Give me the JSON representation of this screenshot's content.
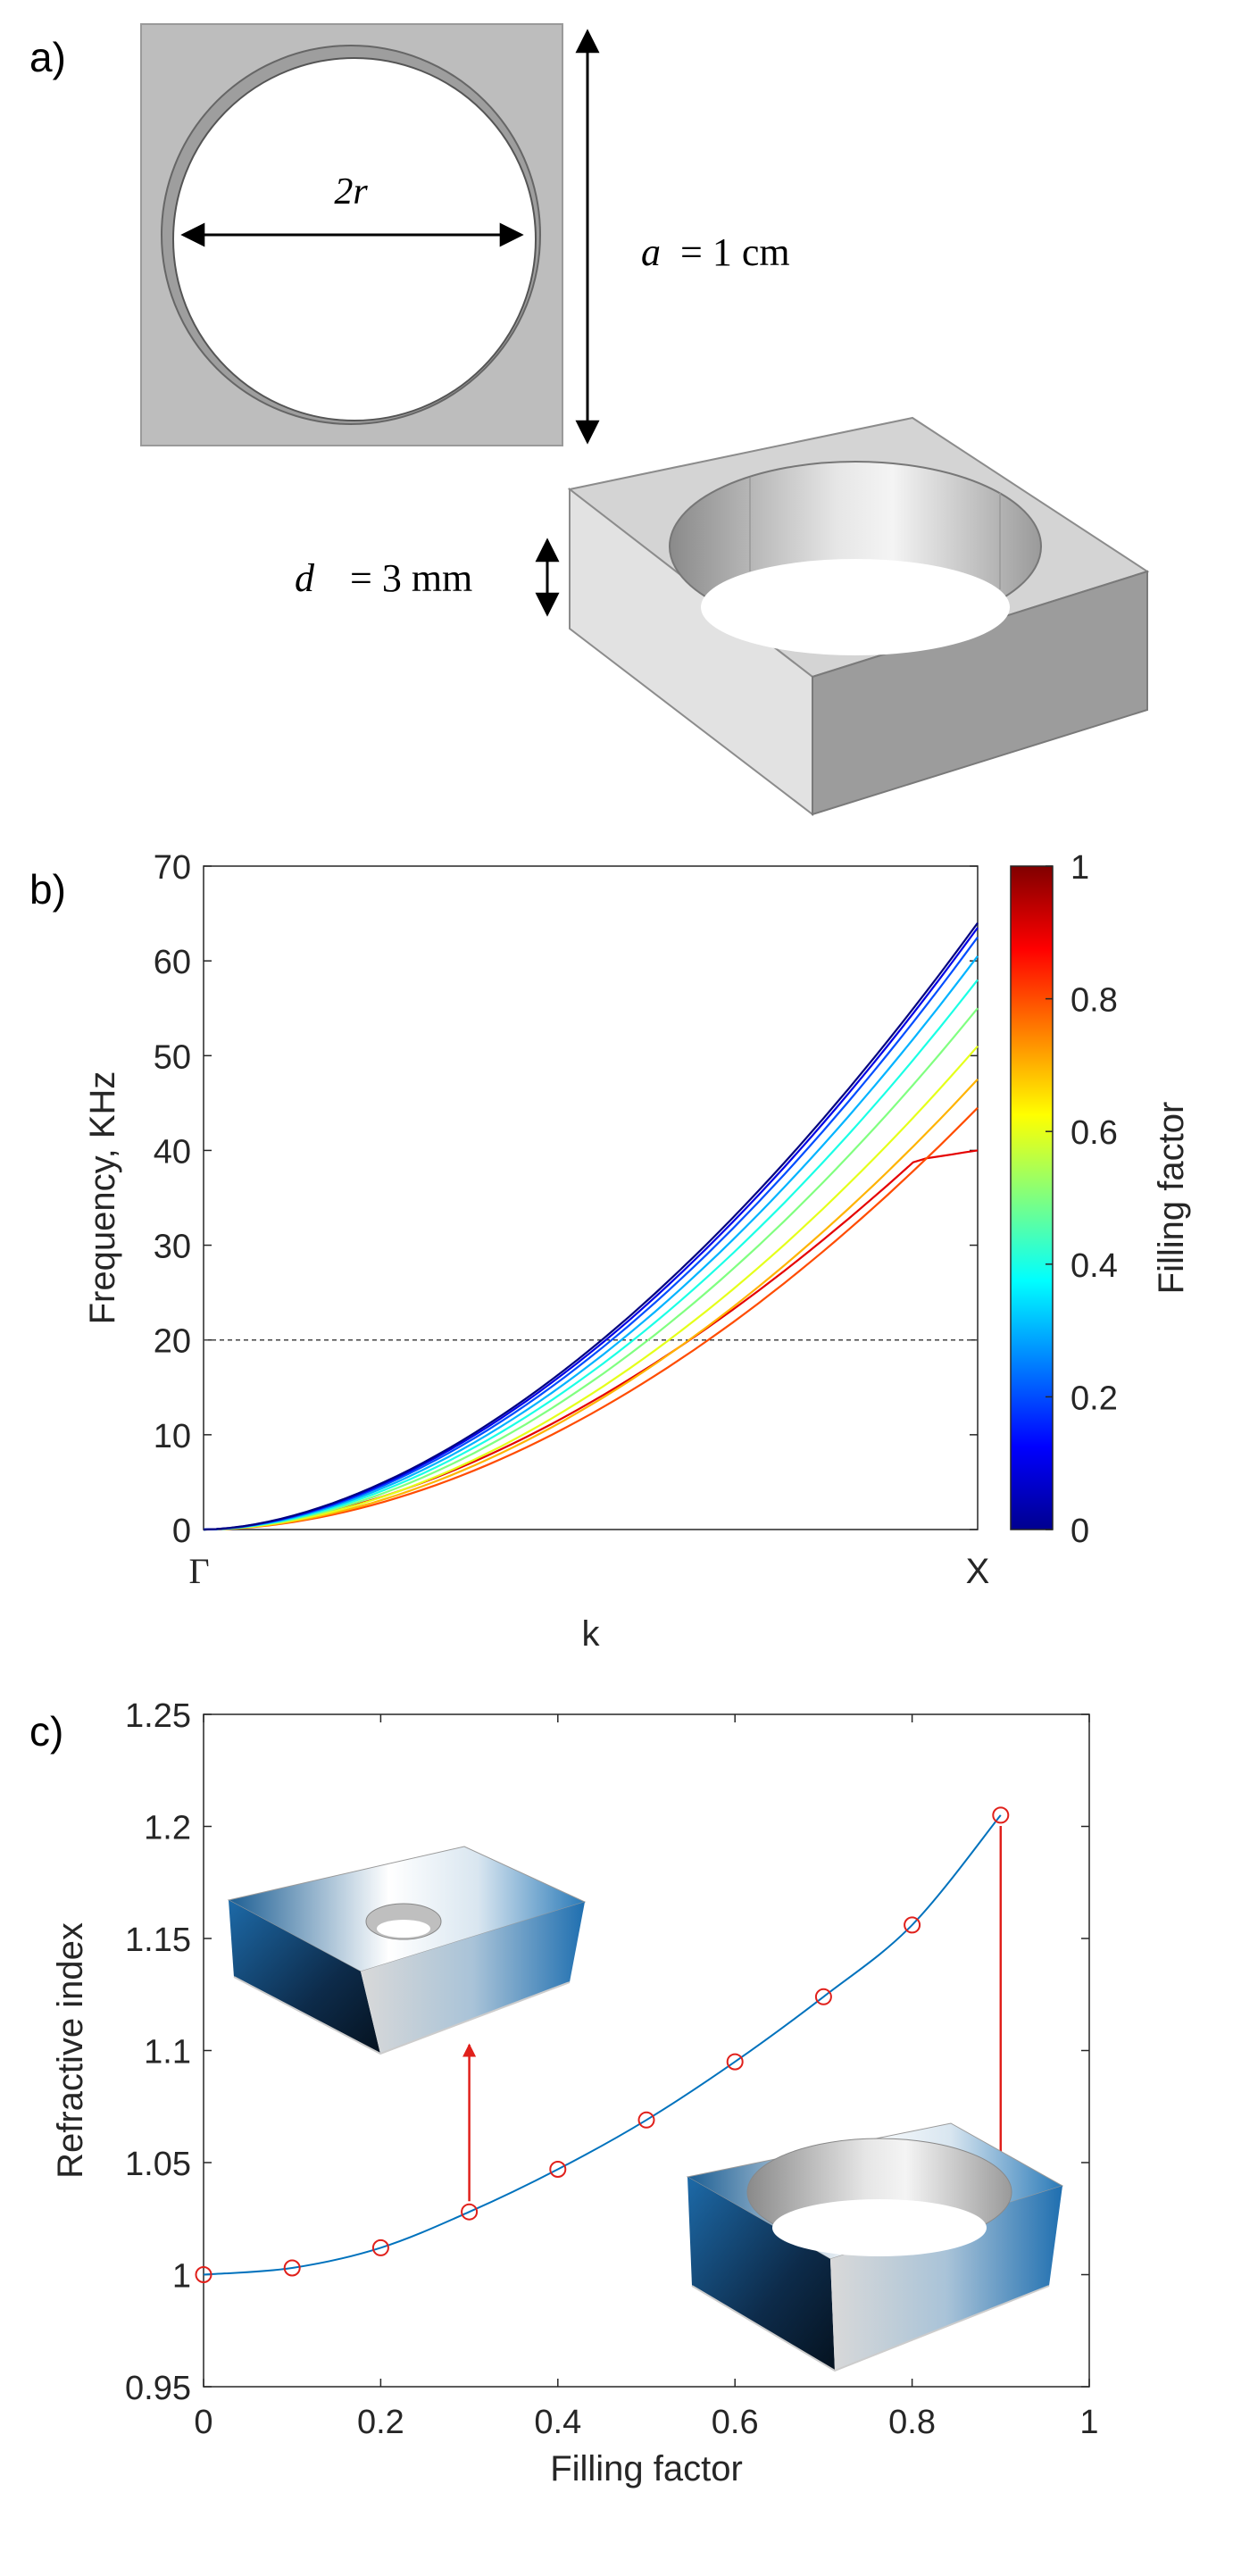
{
  "panels": {
    "a_label": "a)",
    "b_label": "b)",
    "c_label": "c)"
  },
  "geometry": {
    "diameter_label": "2r",
    "period_symbol": "a",
    "period_value": "= 1 cm",
    "thickness_symbol": "d",
    "thickness_value": "= 3 mm"
  },
  "colors": {
    "plate_face": "#bdbdbd",
    "curve_line": "#0072bd",
    "marker": "#e0201b",
    "arrow": "#e0201b"
  },
  "chart_data": [
    {
      "type": "line",
      "panel": "b",
      "title": "",
      "xlabel": "k",
      "ylabel": "Frequency, KHz",
      "x_ticks": [
        "Γ",
        "X"
      ],
      "y_ticks": [
        "0",
        "10",
        "20",
        "30",
        "40",
        "50",
        "60",
        "70"
      ],
      "ylim": [
        0,
        70
      ],
      "reference_line": {
        "y": 20,
        "style": "dashed"
      },
      "colorbar": {
        "label": "Filling factor",
        "range": [
          0,
          1
        ],
        "ticks": [
          "0",
          "0.2",
          "0.4",
          "0.6",
          "0.8",
          "1"
        ],
        "colormap": "jet"
      },
      "series": [
        {
          "name": "0",
          "filling_factor": 0.0,
          "end_value": 64.0
        },
        {
          "name": "0.1",
          "filling_factor": 0.1,
          "end_value": 63.5
        },
        {
          "name": "0.2",
          "filling_factor": 0.2,
          "end_value": 62.5
        },
        {
          "name": "0.3",
          "filling_factor": 0.3,
          "end_value": 60.5
        },
        {
          "name": "0.4",
          "filling_factor": 0.4,
          "end_value": 58.0
        },
        {
          "name": "0.5",
          "filling_factor": 0.5,
          "end_value": 55.0
        },
        {
          "name": "0.6",
          "filling_factor": 0.6,
          "end_value": 51.0
        },
        {
          "name": "0.7",
          "filling_factor": 0.7,
          "end_value": 47.5
        },
        {
          "name": "0.8",
          "filling_factor": 0.8,
          "end_value": 44.5
        },
        {
          "name": "0.9",
          "filling_factor": 0.9,
          "end_value": 40.0
        }
      ]
    },
    {
      "type": "scatter",
      "panel": "c",
      "title": "",
      "xlabel": "Filling factor",
      "ylabel": "Refractive index",
      "xlim": [
        0,
        1
      ],
      "ylim": [
        0.95,
        1.25
      ],
      "x_ticks": [
        "0",
        "0.2",
        "0.4",
        "0.6",
        "0.8",
        "1"
      ],
      "y_ticks": [
        "0.95",
        "1",
        "1.05",
        "1.1",
        "1.15",
        "1.2",
        "1.25"
      ],
      "x": [
        0,
        0.1,
        0.2,
        0.3,
        0.4,
        0.5,
        0.6,
        0.7,
        0.8,
        0.9
      ],
      "values": [
        1.0,
        1.003,
        1.012,
        1.028,
        1.047,
        1.069,
        1.095,
        1.124,
        1.156,
        1.205
      ],
      "fit_line": true,
      "annotations": [
        {
          "x": 0.3,
          "direction": "up",
          "target": "inset-small-hole"
        },
        {
          "x": 0.9,
          "direction": "down",
          "target": "inset-large-hole"
        }
      ]
    }
  ]
}
